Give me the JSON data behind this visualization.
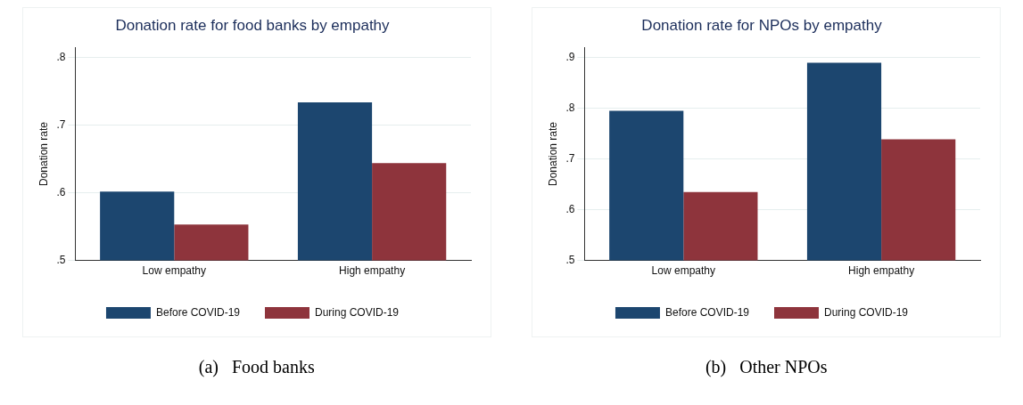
{
  "chart_data": [
    {
      "type": "bar",
      "title": "Donation rate for food banks by empathy",
      "ylabel": "Donation rate",
      "categories": [
        "Low empathy",
        "High empathy"
      ],
      "series": [
        {
          "name": "Before COVID-19",
          "color": "#1c466f",
          "values": [
            0.602,
            0.734
          ]
        },
        {
          "name": "During COVID-19",
          "color": "#8e343c",
          "values": [
            0.553,
            0.644
          ]
        }
      ],
      "ylim": [
        0.5,
        0.815
      ],
      "yticks": [
        {
          "value": 0.5,
          "label": ".5"
        },
        {
          "value": 0.6,
          "label": ".6"
        },
        {
          "value": 0.7,
          "label": ".7"
        },
        {
          "value": 0.8,
          "label": ".8"
        }
      ],
      "grid": "y",
      "legend": "bottom",
      "annotations": [
        "(a)   Food banks"
      ]
    },
    {
      "type": "bar",
      "title": "Donation rate for NPOs by empathy",
      "ylabel": "Donation rate",
      "categories": [
        "Low empathy",
        "High empathy"
      ],
      "series": [
        {
          "name": "Before COVID-19",
          "color": "#1c466f",
          "values": [
            0.795,
            0.89
          ]
        },
        {
          "name": "During COVID-19",
          "color": "#8e343c",
          "values": [
            0.635,
            0.739
          ]
        }
      ],
      "ylim": [
        0.5,
        0.92
      ],
      "yticks": [
        {
          "value": 0.5,
          "label": ".5"
        },
        {
          "value": 0.6,
          "label": ".6"
        },
        {
          "value": 0.7,
          "label": ".7"
        },
        {
          "value": 0.8,
          "label": ".8"
        },
        {
          "value": 0.9,
          "label": ".9"
        }
      ],
      "grid": "y",
      "legend": "bottom",
      "annotations": [
        "(b)   Other NPOs"
      ]
    }
  ]
}
